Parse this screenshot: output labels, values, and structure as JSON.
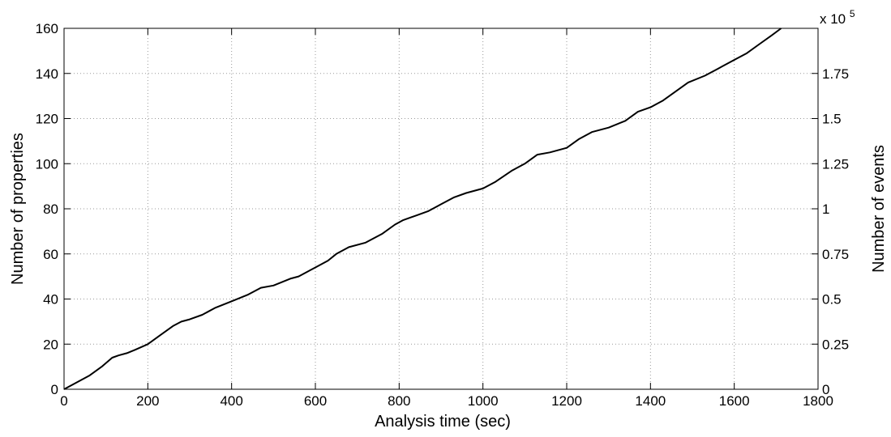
{
  "chart_data": {
    "type": "line",
    "xlabel": "Analysis time (sec)",
    "ylabel": "Number of properties",
    "y2label": "Number of events",
    "y2_multiplier_label": "x 10",
    "y2_multiplier_exponent": "5",
    "xlim": [
      0,
      1800
    ],
    "ylim": [
      0,
      160
    ],
    "y2lim": [
      0,
      2.0
    ],
    "xticks": [
      "0",
      "200",
      "400",
      "600",
      "800",
      "1000",
      "1200",
      "1400",
      "1600",
      "1800"
    ],
    "yticks": [
      "0",
      "20",
      "40",
      "60",
      "80",
      "100",
      "120",
      "140",
      "160"
    ],
    "y2ticks": [
      "0",
      "0.25",
      "0.5",
      "0.75",
      "1",
      "1.25",
      "1.5",
      "1.75"
    ],
    "grid": true,
    "line_color": "#000000",
    "series": [
      {
        "values": [
          [
            0,
            0
          ],
          [
            30,
            3
          ],
          [
            60,
            6
          ],
          [
            90,
            10
          ],
          [
            115,
            14
          ],
          [
            130,
            15
          ],
          [
            150,
            16
          ],
          [
            170,
            17.5
          ],
          [
            200,
            20
          ],
          [
            230,
            24
          ],
          [
            260,
            28
          ],
          [
            280,
            30
          ],
          [
            300,
            31
          ],
          [
            330,
            33
          ],
          [
            360,
            36
          ],
          [
            400,
            39
          ],
          [
            440,
            42
          ],
          [
            470,
            45
          ],
          [
            500,
            46
          ],
          [
            540,
            49
          ],
          [
            560,
            50
          ],
          [
            600,
            54
          ],
          [
            630,
            57
          ],
          [
            650,
            60
          ],
          [
            680,
            63
          ],
          [
            720,
            65
          ],
          [
            760,
            69
          ],
          [
            790,
            73
          ],
          [
            810,
            75
          ],
          [
            840,
            77
          ],
          [
            870,
            79
          ],
          [
            900,
            82
          ],
          [
            930,
            85
          ],
          [
            960,
            87
          ],
          [
            1000,
            89
          ],
          [
            1030,
            92
          ],
          [
            1070,
            97
          ],
          [
            1100,
            100
          ],
          [
            1130,
            104
          ],
          [
            1160,
            105
          ],
          [
            1200,
            107
          ],
          [
            1230,
            111
          ],
          [
            1260,
            114
          ],
          [
            1300,
            116
          ],
          [
            1340,
            119
          ],
          [
            1370,
            123
          ],
          [
            1400,
            125
          ],
          [
            1430,
            128
          ],
          [
            1460,
            132
          ],
          [
            1490,
            136
          ],
          [
            1530,
            139
          ],
          [
            1560,
            142
          ],
          [
            1600,
            146
          ],
          [
            1630,
            149
          ],
          [
            1660,
            153
          ],
          [
            1690,
            157
          ],
          [
            1712,
            160
          ]
        ]
      }
    ]
  }
}
